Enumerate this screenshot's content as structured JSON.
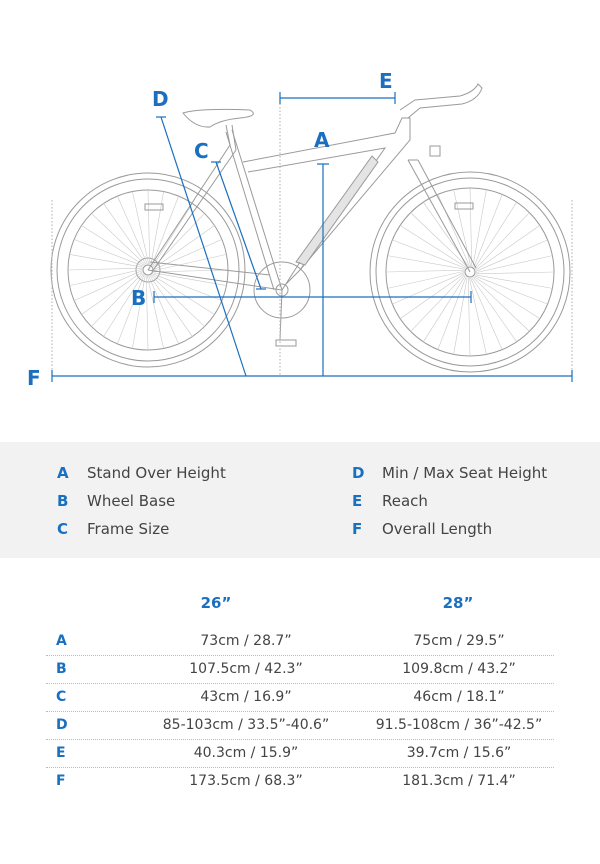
{
  "colors": {
    "accent": "#1a6fbf",
    "line_art": "#9a9a9a",
    "legend_bg": "#f2f2f2",
    "text": "#444444"
  },
  "diagram": {
    "labels": {
      "A": "A",
      "B": "B",
      "C": "C",
      "D": "D",
      "E": "E",
      "F": "F"
    }
  },
  "legend": [
    {
      "key": "A",
      "label": "Stand Over Height"
    },
    {
      "key": "B",
      "label": "Wheel Base"
    },
    {
      "key": "C",
      "label": "Frame Size"
    },
    {
      "key": "D",
      "label": "Min / Max Seat Height"
    },
    {
      "key": "E",
      "label": "Reach"
    },
    {
      "key": "F",
      "label": "Overall Length"
    }
  ],
  "specs": {
    "columns": [
      "26”",
      "28”"
    ],
    "rows": [
      {
        "key": "A",
        "values": [
          "73cm / 28.7”",
          "75cm / 29.5”"
        ]
      },
      {
        "key": "B",
        "values": [
          "107.5cm / 42.3”",
          "109.8cm / 43.2”"
        ]
      },
      {
        "key": "C",
        "values": [
          "43cm / 16.9”",
          "46cm / 18.1”"
        ]
      },
      {
        "key": "D",
        "values": [
          "85-103cm / 33.5”-40.6”",
          "91.5-108cm / 36”-42.5”"
        ]
      },
      {
        "key": "E",
        "values": [
          "40.3cm / 15.9”",
          "39.7cm / 15.6”"
        ]
      },
      {
        "key": "F",
        "values": [
          "173.5cm / 68.3”",
          "181.3cm / 71.4”"
        ]
      }
    ]
  }
}
